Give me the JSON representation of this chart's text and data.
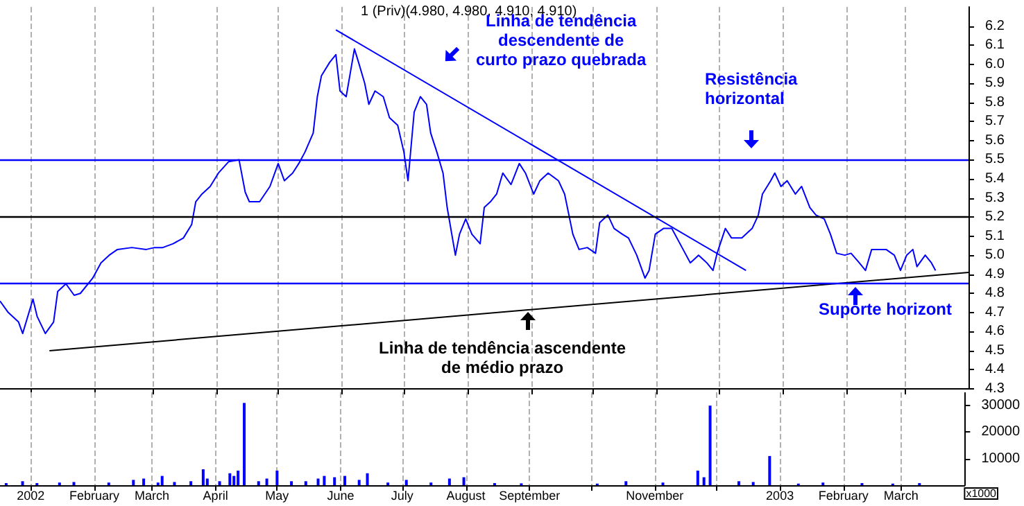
{
  "chart_data": [
    {
      "type": "line",
      "title": "1 (Priv)(4.980, 4.980, 4.910, 4.910)",
      "annotations": [
        "Linha de tendência\ndescendente de\ncurto prazo quebrada",
        "Resistência\nhorizontal",
        "Suporte horizont",
        "Linha de tendência ascendente\nde médio prazo"
      ],
      "xlim": [
        "2001-12-17",
        "2003-04-01"
      ],
      "xticks": [
        {
          "value": "2002-01-01",
          "label": null
        },
        {
          "value": "2002-02-01",
          "label": null
        },
        {
          "value": "2002-03-01",
          "label": null
        },
        {
          "value": "2002-04-01",
          "label": null
        },
        {
          "value": "2002-05-01",
          "label": null
        },
        {
          "value": "2002-06-01",
          "label": null
        },
        {
          "value": "2002-07-01",
          "label": null
        },
        {
          "value": "2002-08-01",
          "label": null
        },
        {
          "value": "2002-09-01",
          "label": null
        },
        {
          "value": "2002-10-01",
          "label": null
        },
        {
          "value": "2002-11-01",
          "label": null
        },
        {
          "value": "2002-12-01",
          "label": null
        },
        {
          "value": "2003-01-01",
          "label": null
        },
        {
          "value": "2003-02-01",
          "label": null
        },
        {
          "value": "2003-03-01",
          "label": null
        }
      ],
      "ylim": [
        4.3,
        6.3
      ],
      "yticks": [
        4.3,
        4.4,
        4.5,
        4.6,
        4.7,
        4.8,
        4.9,
        {
          "value": 5,
          "label": "5.0"
        },
        5.1,
        5.2,
        5.3,
        5.4,
        5.5,
        5.6,
        5.7,
        5.8,
        5.9,
        {
          "value": 6,
          "label": "6.0"
        },
        6.1,
        6.2
      ],
      "tick_labels": "y",
      "grid": "x",
      "marker": "none",
      "ref_lines": [
        {
          "axis": "y",
          "value": 5.5,
          "color": "#0000ff"
        },
        {
          "axis": "y",
          "value": 5.2,
          "color": "#000000"
        },
        {
          "axis": "y",
          "value": 4.85,
          "color": "#0000ff"
        }
      ],
      "series": [
        {
          "color": "#0000ff",
          "x": [
            "2001-12-17",
            "2001-12-21",
            "2001-12-26",
            "2001-12-28",
            "2002-01-02",
            "2002-01-04",
            "2002-01-08",
            "2002-01-12",
            "2002-01-14",
            "2002-01-18",
            "2002-01-22",
            "2002-01-25",
            "2002-01-31",
            "2002-02-04",
            "2002-02-08",
            "2002-02-12",
            "2002-02-19",
            "2002-02-26",
            "2002-03-02",
            "2002-03-06",
            "2002-03-11",
            "2002-03-16",
            "2002-03-20",
            "2002-03-22",
            "2002-03-25",
            "2002-03-29",
            "2002-04-02",
            "2002-04-07",
            "2002-04-12",
            "2002-04-15",
            "2002-04-17",
            "2002-04-22",
            "2002-04-27",
            "2002-05-01",
            "2002-05-04",
            "2002-05-08",
            "2002-05-11",
            "2002-05-14",
            "2002-05-18",
            "2002-05-20",
            "2002-05-22",
            "2002-05-26",
            "2002-05-29",
            "2002-05-31",
            "2002-06-03",
            "2002-06-07",
            "2002-06-09",
            "2002-06-12",
            "2002-06-14",
            "2002-06-17",
            "2002-06-21",
            "2002-06-24",
            "2002-06-28",
            "2002-07-01",
            "2002-07-03",
            "2002-07-06",
            "2002-07-09",
            "2002-07-12",
            "2002-07-14",
            "2002-07-17",
            "2002-07-20",
            "2002-07-22",
            "2002-07-26",
            "2002-07-28",
            "2002-07-31",
            "2002-08-03",
            "2002-08-07",
            "2002-08-09",
            "2002-08-12",
            "2002-08-15",
            "2002-08-18",
            "2002-08-22",
            "2002-08-26",
            "2002-08-29",
            "2002-09-02",
            "2002-09-05",
            "2002-09-09",
            "2002-09-14",
            "2002-09-17",
            "2002-09-21",
            "2002-09-24",
            "2002-09-28",
            "2002-10-02",
            "2002-10-04",
            "2002-10-08",
            "2002-10-11",
            "2002-10-15",
            "2002-10-18",
            "2002-10-22",
            "2002-10-26",
            "2002-10-28",
            "2002-10-31",
            "2002-11-04",
            "2002-11-08",
            "2002-11-13",
            "2002-11-17",
            "2002-11-21",
            "2002-11-25",
            "2002-11-28",
            "2002-11-30",
            "2002-12-04",
            "2002-12-07",
            "2002-12-12",
            "2002-12-17",
            "2002-12-20",
            "2002-12-22",
            "2002-12-26",
            "2002-12-28",
            "2002-12-31",
            "2003-01-03",
            "2003-01-07",
            "2003-01-10",
            "2003-01-14",
            "2003-01-17",
            "2003-01-21",
            "2003-01-24",
            "2003-01-27",
            "2003-01-31",
            "2003-02-03",
            "2003-02-07",
            "2003-02-10",
            "2003-02-13",
            "2003-02-17",
            "2003-02-20",
            "2003-02-24",
            "2003-02-27",
            "2003-03-02",
            "2003-03-05",
            "2003-03-07",
            "2003-03-11",
            "2003-03-14",
            "2003-03-16"
          ],
          "values": [
            4.76,
            4.7,
            4.65,
            4.59,
            4.77,
            4.68,
            4.59,
            4.65,
            4.81,
            4.85,
            4.79,
            4.8,
            4.88,
            4.96,
            5.0,
            5.03,
            5.04,
            5.03,
            5.04,
            5.04,
            5.06,
            5.09,
            5.16,
            5.28,
            5.32,
            5.36,
            5.43,
            5.49,
            5.5,
            5.33,
            5.28,
            5.28,
            5.36,
            5.48,
            5.39,
            5.43,
            5.48,
            5.54,
            5.64,
            5.83,
            5.94,
            6.01,
            6.05,
            5.86,
            5.83,
            6.08,
            6.01,
            5.9,
            5.79,
            5.86,
            5.83,
            5.72,
            5.68,
            5.54,
            5.39,
            5.75,
            5.83,
            5.79,
            5.64,
            5.54,
            5.43,
            5.25,
            5.0,
            5.11,
            5.19,
            5.11,
            5.06,
            5.25,
            5.28,
            5.32,
            5.43,
            5.37,
            5.48,
            5.43,
            5.32,
            5.39,
            5.43,
            5.39,
            5.32,
            5.11,
            5.03,
            5.04,
            5.01,
            5.17,
            5.21,
            5.14,
            5.11,
            5.09,
            5.0,
            4.88,
            4.92,
            5.11,
            5.14,
            5.14,
            5.04,
            4.96,
            5.0,
            4.96,
            4.92,
            5.01,
            5.14,
            5.09,
            5.09,
            5.14,
            5.21,
            5.32,
            5.39,
            5.43,
            5.36,
            5.39,
            5.32,
            5.36,
            5.25,
            5.21,
            5.19,
            5.11,
            5.01,
            5.0,
            5.01,
            4.96,
            4.92,
            5.03,
            5.03,
            5.03,
            5.0,
            4.92,
            5.0,
            5.03,
            4.94,
            5.0,
            4.96,
            4.92
          ]
        },
        {
          "type": "line",
          "color": "#0000ff",
          "x": [
            "2002-05-29",
            "2002-12-14"
          ],
          "values": [
            6.18,
            4.92
          ]
        },
        {
          "type": "line",
          "color": "#000000",
          "x": [
            "2002-01-10",
            "2003-04-01"
          ],
          "values": [
            4.5,
            4.91
          ]
        }
      ]
    },
    {
      "type": "bar",
      "ylabel": "x1000",
      "color": "#0000ff",
      "xlim": [
        "2001-12-17",
        "2003-04-01"
      ],
      "xticks": [
        {
          "value": "2002-01-01",
          "label": "2002"
        },
        {
          "value": "2002-02-01",
          "label": "February"
        },
        {
          "value": "2002-03-01",
          "label": "March"
        },
        {
          "value": "2002-04-01",
          "label": "April"
        },
        {
          "value": "2002-05-01",
          "label": "May"
        },
        {
          "value": "2002-06-01",
          "label": "June"
        },
        {
          "value": "2002-07-01",
          "label": "July"
        },
        {
          "value": "2002-08-01",
          "label": "August"
        },
        {
          "value": "2002-09-01",
          "label": "September"
        },
        {
          "value": "2002-10-01",
          "label": null
        },
        {
          "value": "2002-11-01",
          "label": "November"
        },
        {
          "value": "2002-12-01",
          "label": null
        },
        {
          "value": "2003-01-01",
          "label": "2003"
        },
        {
          "value": "2003-02-01",
          "label": "February"
        },
        {
          "value": "2003-03-01",
          "label": "March"
        }
      ],
      "ylim": [
        0,
        35000
      ],
      "yticks": [
        10000,
        20000,
        30000
      ],
      "grid": "x",
      "x": [
        "2001-12-20",
        "2001-12-28",
        "2002-01-04",
        "2002-01-15",
        "2002-01-22",
        "2002-02-08",
        "2002-02-20",
        "2002-02-25",
        "2002-03-04",
        "2002-03-06",
        "2002-03-12",
        "2002-03-20",
        "2002-03-26",
        "2002-03-28",
        "2002-04-03",
        "2002-04-08",
        "2002-04-10",
        "2002-04-12",
        "2002-04-15",
        "2002-04-22",
        "2002-04-26",
        "2002-05-01",
        "2002-05-08",
        "2002-05-15",
        "2002-05-21",
        "2002-05-24",
        "2002-05-29",
        "2002-06-03",
        "2002-06-10",
        "2002-06-14",
        "2002-06-24",
        "2002-07-03",
        "2002-07-15",
        "2002-07-24",
        "2002-07-31",
        "2002-08-15",
        "2002-08-28",
        "2002-10-04",
        "2002-10-18",
        "2002-11-05",
        "2002-11-22",
        "2002-11-25",
        "2002-11-28",
        "2002-12-12",
        "2002-12-19",
        "2002-12-27",
        "2003-01-10",
        "2003-01-22",
        "2003-02-10",
        "2003-02-25",
        "2003-03-10"
      ],
      "values": [
        800,
        1500,
        800,
        1000,
        1200,
        1000,
        2000,
        2500,
        1000,
        3500,
        1200,
        1500,
        6000,
        2500,
        1500,
        4500,
        3500,
        5500,
        31000,
        1500,
        2500,
        5500,
        1500,
        1500,
        2500,
        3500,
        3000,
        3500,
        2000,
        4500,
        1000,
        2000,
        1000,
        2500,
        3000,
        800,
        700,
        600,
        1500,
        1000,
        5500,
        3000,
        30000,
        1500,
        1200,
        11000,
        600,
        1000,
        800,
        600,
        800
      ]
    }
  ]
}
